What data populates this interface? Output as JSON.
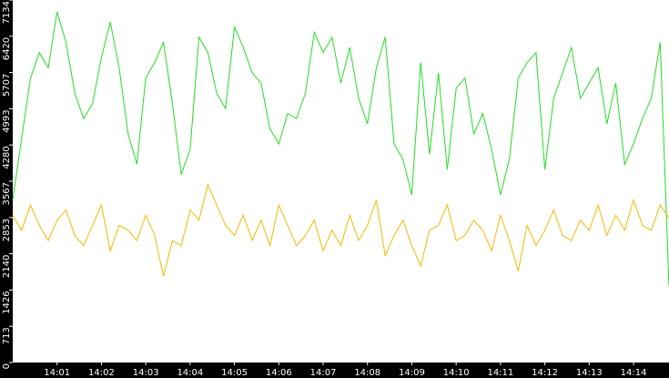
{
  "chart_data": {
    "type": "line",
    "categories": [
      null,
      null,
      null,
      null,
      null,
      "14:01",
      null,
      null,
      null,
      null,
      "14:02",
      null,
      null,
      null,
      null,
      "14:03",
      null,
      null,
      null,
      null,
      "14:04",
      null,
      null,
      null,
      null,
      "14:05",
      null,
      null,
      null,
      null,
      "14:06",
      null,
      null,
      null,
      null,
      "14:07",
      null,
      null,
      null,
      null,
      "14:08",
      null,
      null,
      null,
      null,
      "14:09",
      null,
      null,
      null,
      null,
      "14:10",
      null,
      null,
      null,
      null,
      "14:11",
      null,
      null,
      null,
      null,
      "14:12",
      null,
      null,
      null,
      null,
      "14:13",
      null,
      null,
      null,
      null,
      "14:14",
      null,
      null,
      null,
      null
    ],
    "series": [
      {
        "color": "#22dd22",
        "values": [
          3200,
          4400,
          5600,
          6100,
          5800,
          6900,
          6300,
          5300,
          4800,
          5100,
          6000,
          6700,
          5800,
          4500,
          3900,
          5600,
          5900,
          6300,
          5100,
          3700,
          4200,
          6400,
          6100,
          5300,
          5000,
          6600,
          6200,
          5700,
          5500,
          4600,
          4300,
          4900,
          4800,
          5300,
          6500,
          6100,
          6400,
          5500,
          6200,
          5200,
          4700,
          5800,
          6400,
          4300,
          4000,
          3300,
          5900,
          4100,
          5700,
          3800,
          5400,
          5600,
          4500,
          4900,
          4200,
          3300,
          4000,
          5600,
          5900,
          6100,
          3800,
          5200,
          5700,
          6200,
          5200,
          5500,
          5800,
          4700,
          5500,
          3900,
          4300,
          4800,
          5200,
          6300,
          1500
        ]
      },
      {
        "color": "#f5b800",
        "values": [
          2900,
          2600,
          3100,
          2700,
          2400,
          2800,
          3000,
          2500,
          2300,
          2700,
          3100,
          2200,
          2700,
          2600,
          2400,
          2900,
          2500,
          1700,
          2400,
          2300,
          3000,
          2800,
          3500,
          3100,
          2700,
          2500,
          2900,
          2400,
          2800,
          2300,
          3100,
          2700,
          2300,
          2500,
          2800,
          2200,
          2600,
          2300,
          2900,
          2400,
          2700,
          3200,
          2100,
          2500,
          2800,
          2300,
          1900,
          2600,
          2700,
          3100,
          2400,
          2500,
          2800,
          2600,
          2200,
          2900,
          2400,
          1800,
          2700,
          2300,
          2600,
          3000,
          2500,
          2400,
          2800,
          2600,
          3100,
          2500,
          2900,
          2600,
          3200,
          2700,
          2600,
          3100,
          2850
        ]
      }
    ],
    "ylim": [
      0,
      7134
    ],
    "yticks": [
      0,
      713,
      1426,
      2140,
      2853,
      3567,
      4280,
      4993,
      5707,
      6420,
      7134
    ]
  }
}
